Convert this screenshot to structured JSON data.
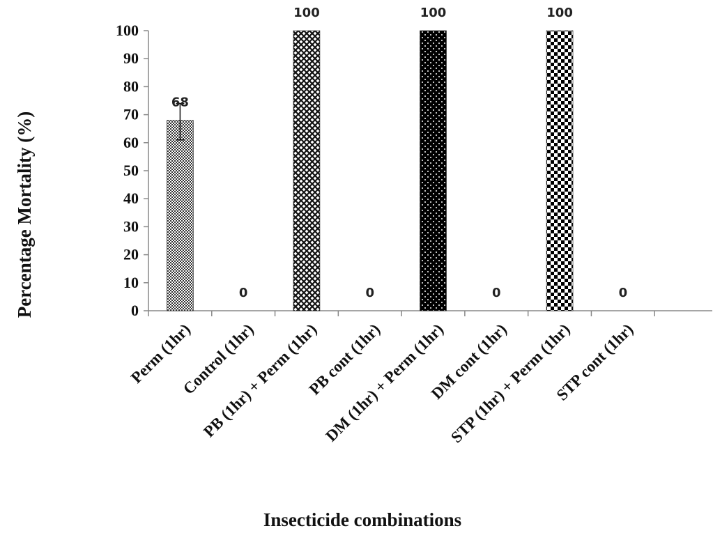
{
  "chart_data": {
    "type": "bar",
    "categories": [
      "Perm (1hr)",
      "Control (1hr)",
      "PB (1hr) + Perm (1hr)",
      "PB cont (1hr)",
      "DM (1hr) + Perm (1hr)",
      "DM cont (1hr)",
      "STP (1hr) + Perm (1hr)",
      "STP cont (1hr)"
    ],
    "values": [
      68,
      0,
      100,
      0,
      100,
      0,
      100,
      0
    ],
    "data_labels": [
      "68",
      "0",
      "100",
      "0",
      "100",
      "0",
      "100",
      "0"
    ],
    "error_bars": [
      {
        "index": 0,
        "low": 61,
        "high": 74
      }
    ],
    "fill_patterns": [
      "fine-check",
      "none",
      "crosshatch",
      "none",
      "dots-on-black",
      "none",
      "checkerboard",
      "none"
    ],
    "xlabel": "Insecticide combinations",
    "ylabel": "Percentage Mortality  (%)",
    "ylim": [
      0,
      100
    ],
    "yticks": [
      "0",
      "10",
      "20",
      "30",
      "40",
      "50",
      "60",
      "70",
      "80",
      "90",
      "100"
    ],
    "grid": false,
    "legend": "none"
  }
}
